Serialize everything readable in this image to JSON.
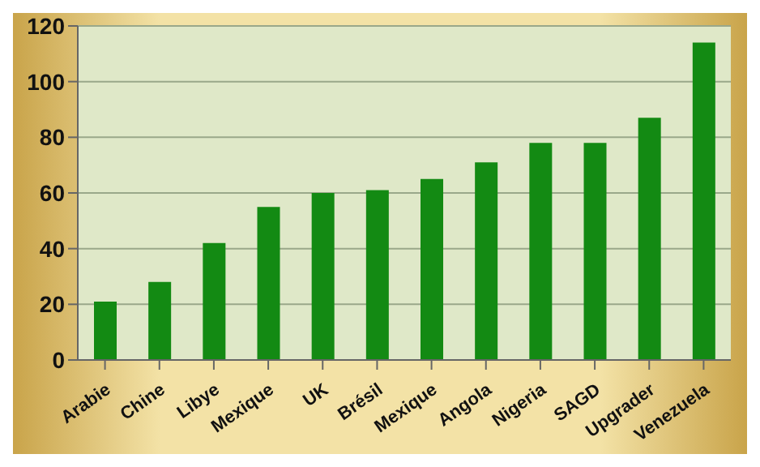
{
  "chart_data": {
    "type": "bar",
    "categories": [
      "Arabie",
      "Chine",
      "Libye",
      "Mexique",
      "UK",
      "Brésil",
      "Mexique",
      "Angola",
      "Nigeria",
      "SAGD",
      "Upgrader",
      "Venezuela"
    ],
    "values": [
      21,
      28,
      42,
      55,
      60,
      61,
      65,
      71,
      78,
      78,
      87,
      114
    ],
    "color": "#138a13",
    "ylim": [
      0,
      120
    ],
    "yticks": [
      0,
      20,
      40,
      60,
      80,
      100,
      120
    ],
    "grid": "y",
    "legend": false
  }
}
